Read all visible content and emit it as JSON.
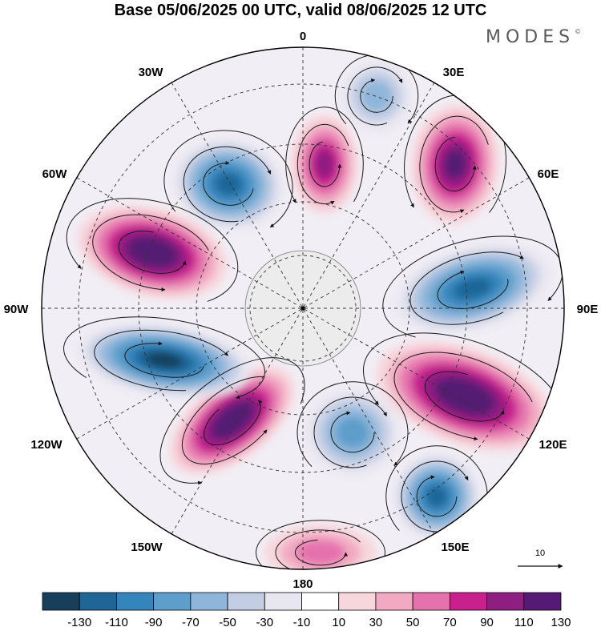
{
  "title": "Base 05/06/2025 00 UTC, valid 08/06/2025 12 UTC",
  "brand": "MODES",
  "brand_mark": "©",
  "map": {
    "projection": "polar-stereographic",
    "longitude_labels": {
      "top": "0",
      "upper_right": "30E",
      "right_upper": "60E",
      "right": "90E",
      "right_lower": "120E",
      "lower_right": "150E",
      "bottom": "180",
      "lower_left": "150W",
      "left_lower": "120W",
      "left": "90W",
      "left_upper": "60W",
      "upper_left": "30W"
    },
    "reference_vector_label": "10"
  },
  "colorbar": {
    "ticks": [
      "-130",
      "-110",
      "-90",
      "-70",
      "-50",
      "-30",
      "-10",
      "10",
      "30",
      "50",
      "70",
      "90",
      "110",
      "130"
    ],
    "colors": [
      "#173f5c",
      "#1f6697",
      "#3585bd",
      "#5d9ecb",
      "#8fb6da",
      "#c3cee4",
      "#e8e6f0",
      "#ffffff",
      "#f7d6dc",
      "#f1aac2",
      "#e572ad",
      "#c8218e",
      "#8e1f81",
      "#551a73"
    ]
  },
  "anomalies": [
    {
      "name": "anomaly-north-center",
      "sign": "positive",
      "level": 90
    },
    {
      "name": "anomaly-north-west",
      "sign": "negative",
      "level": -110
    },
    {
      "name": "anomaly-north-east-pos",
      "sign": "positive",
      "level": 110
    },
    {
      "name": "anomaly-north-east-neg",
      "sign": "negative",
      "level": -50
    },
    {
      "name": "anomaly-east-neg",
      "sign": "negative",
      "level": -110
    },
    {
      "name": "anomaly-southeast-pos",
      "sign": "positive",
      "level": 130
    },
    {
      "name": "anomaly-south-east-neg",
      "sign": "negative",
      "level": -110
    },
    {
      "name": "anomaly-south-center-neg",
      "sign": "negative",
      "level": -70
    },
    {
      "name": "anomaly-south-pos",
      "sign": "positive",
      "level": 50
    },
    {
      "name": "anomaly-southwest-pos",
      "sign": "positive",
      "level": 130
    },
    {
      "name": "anomaly-west-neg",
      "sign": "negative",
      "level": -130
    },
    {
      "name": "anomaly-northwest-pos",
      "sign": "positive",
      "level": 130
    }
  ]
}
